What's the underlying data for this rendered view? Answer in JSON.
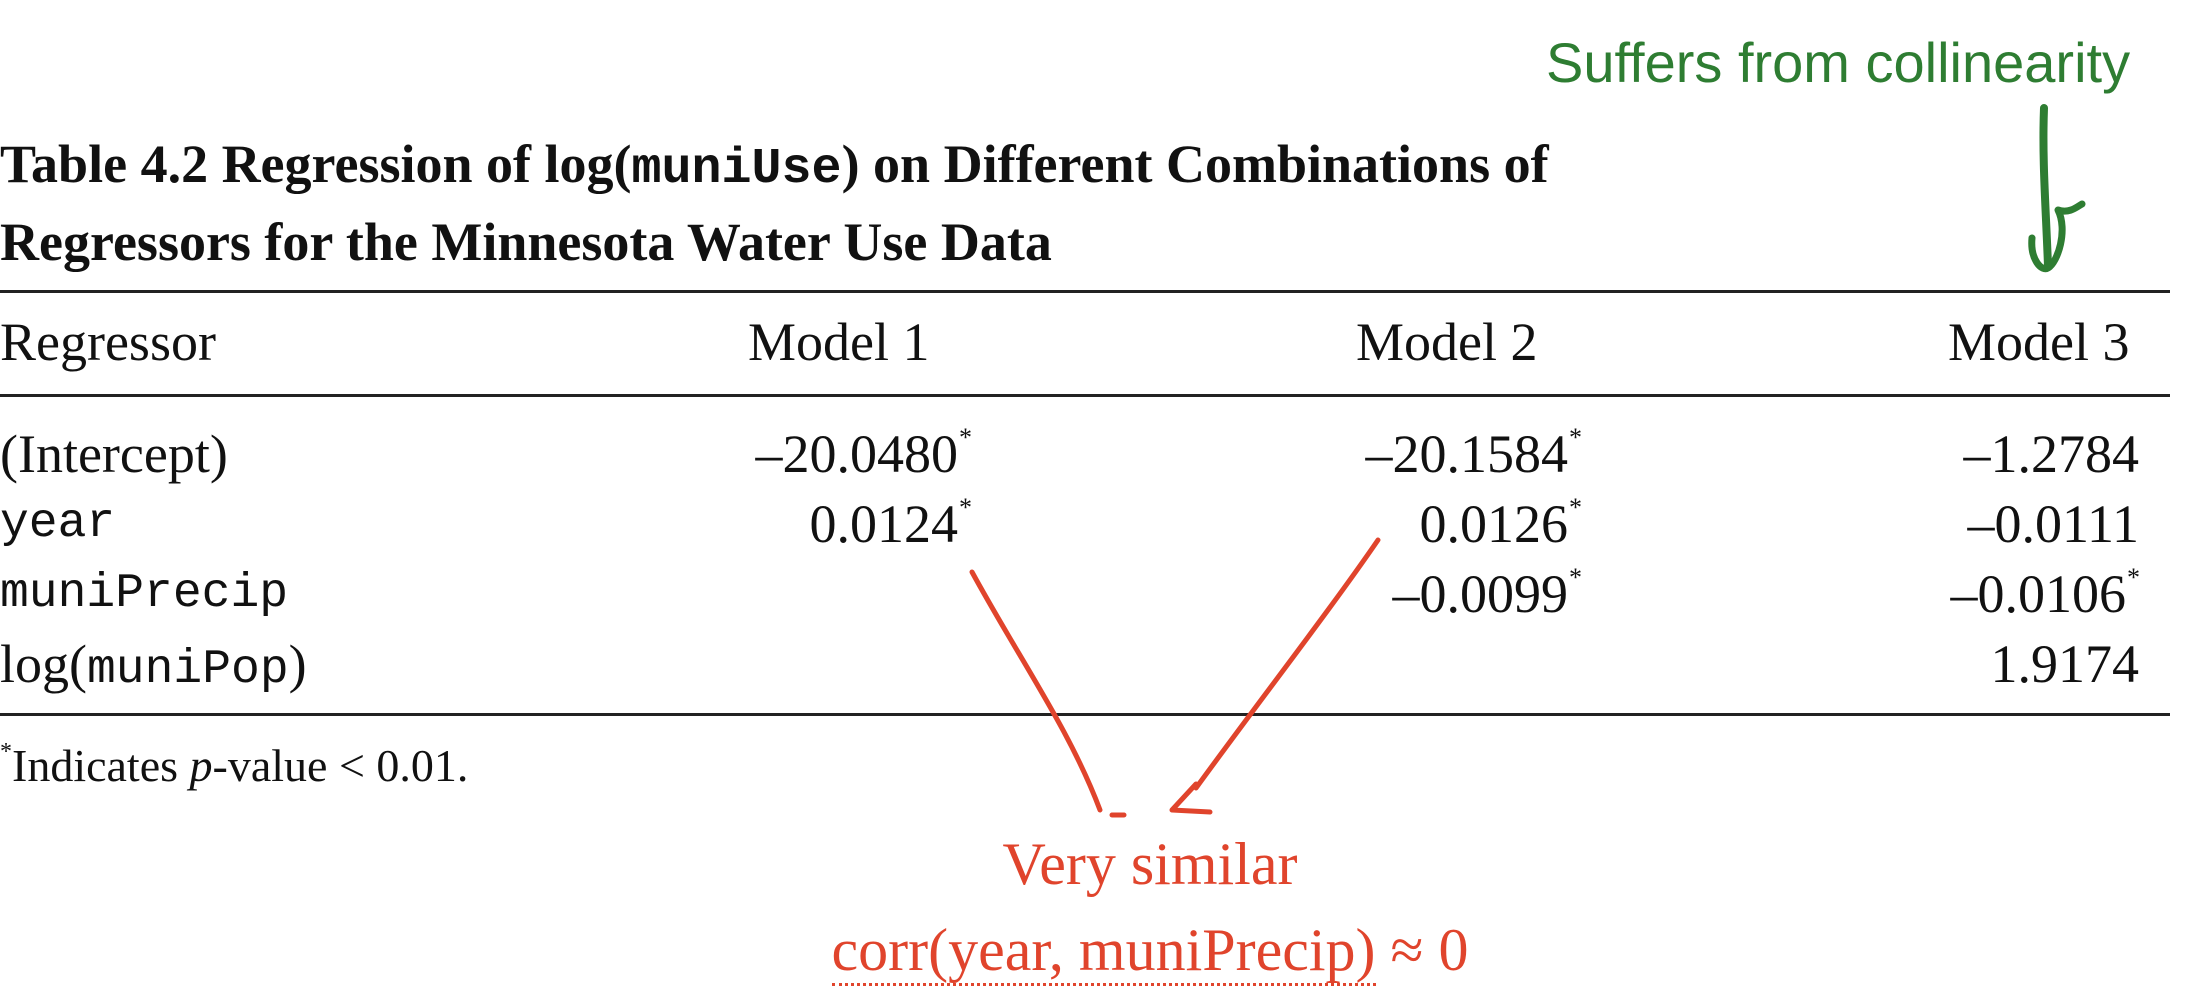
{
  "caption": {
    "prefix": "Table 4.2  Regression of log(",
    "code": "muniUse",
    "suffix": ") on Different Combinations of",
    "line2": "Regressors for the Minnesota Water Use Data"
  },
  "table": {
    "headers": [
      "Regressor",
      "Model 1",
      "Model 2",
      "Model 3"
    ],
    "rows": [
      {
        "regressor": "(Intercept)",
        "m1": "–20.0480",
        "m1_star": "*",
        "m2": "–20.1584",
        "m2_star": "*",
        "m3": "–1.2784",
        "m3_star": ""
      },
      {
        "regressor": "year",
        "m1": "0.0124",
        "m1_star": "*",
        "m2": "0.0126",
        "m2_star": "*",
        "m3": "–0.0111",
        "m3_star": ""
      },
      {
        "regressor": "muniPrecip",
        "m1": "",
        "m1_star": "",
        "m2": "–0.0099",
        "m2_star": "*",
        "m3": "–0.0106",
        "m3_star": "*"
      },
      {
        "regressor_prefix": "log(",
        "regressor_code": "muniPop",
        "regressor_suffix": ")",
        "m1": "",
        "m1_star": "",
        "m2": "",
        "m2_star": "",
        "m3": "1.9174",
        "m3_star": ""
      }
    ]
  },
  "footnote": {
    "star": "*",
    "text_a": "Indicates ",
    "text_p": "p",
    "text_b": "-value < 0.01."
  },
  "annotations": {
    "green_note": "Suffers from collinearity",
    "red_line1": "Very similar",
    "red_line2_a": "corr(year, muniPrecip)",
    "red_line2_b": " ≈ 0",
    "green_color": "#2e7d32",
    "red_color": "#e0442c"
  }
}
